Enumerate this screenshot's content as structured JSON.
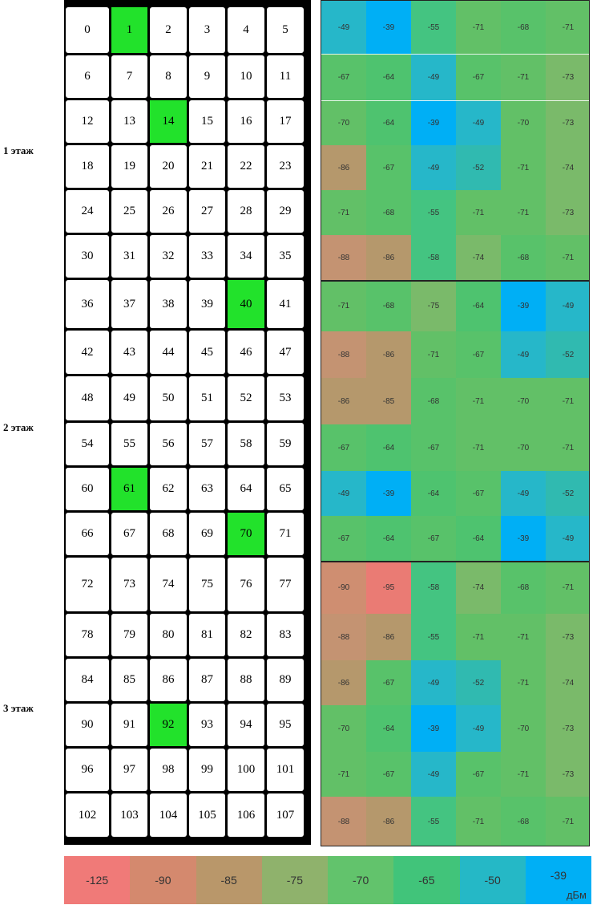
{
  "floors": [
    {
      "label": "1 этаж"
    },
    {
      "label": "2 этаж"
    },
    {
      "label": "3 этаж"
    }
  ],
  "rooms": [
    "0",
    "1",
    "2",
    "3",
    "4",
    "5",
    "6",
    "7",
    "8",
    "9",
    "10",
    "11",
    "12",
    "13",
    "14",
    "15",
    "16",
    "17",
    "18",
    "19",
    "20",
    "21",
    "22",
    "23",
    "24",
    "25",
    "26",
    "27",
    "28",
    "29",
    "30",
    "31",
    "32",
    "33",
    "34",
    "35",
    "36",
    "37",
    "38",
    "39",
    "40",
    "41",
    "42",
    "43",
    "44",
    "45",
    "46",
    "47",
    "48",
    "49",
    "50",
    "51",
    "52",
    "53",
    "54",
    "55",
    "56",
    "57",
    "58",
    "59",
    "60",
    "61",
    "62",
    "63",
    "64",
    "65",
    "66",
    "67",
    "68",
    "69",
    "70",
    "71",
    "72",
    "73",
    "74",
    "75",
    "76",
    "77",
    "78",
    "79",
    "80",
    "81",
    "82",
    "83",
    "84",
    "85",
    "86",
    "87",
    "88",
    "89",
    "90",
    "91",
    "92",
    "93",
    "94",
    "95",
    "96",
    "97",
    "98",
    "99",
    "100",
    "101",
    "102",
    "103",
    "104",
    "105",
    "106",
    "107"
  ],
  "highlighted_rooms": [
    1,
    14,
    40,
    61,
    70,
    92
  ],
  "signal_dbm": [
    [
      -49,
      -39,
      -55,
      -71,
      -68,
      -71
    ],
    [
      -67,
      -64,
      -49,
      -67,
      -71,
      -73
    ],
    [
      -70,
      -64,
      -39,
      -49,
      -70,
      -73
    ],
    [
      -86,
      -67,
      -49,
      -52,
      -71,
      -74
    ],
    [
      -71,
      -68,
      -55,
      -71,
      -71,
      -73
    ],
    [
      -88,
      -86,
      -58,
      -74,
      -68,
      -71
    ],
    [
      -71,
      -68,
      -75,
      -64,
      -39,
      -49
    ],
    [
      -88,
      -86,
      -71,
      -67,
      -49,
      -52
    ],
    [
      -86,
      -85,
      -68,
      -71,
      -70,
      -71
    ],
    [
      -67,
      -64,
      -67,
      -71,
      -70,
      -71
    ],
    [
      -49,
      -39,
      -64,
      -67,
      -49,
      -52
    ],
    [
      -67,
      -64,
      -67,
      -64,
      -39,
      -49
    ],
    [
      -90,
      -95,
      -58,
      -74,
      -68,
      -71
    ],
    [
      -88,
      -86,
      -55,
      -71,
      -71,
      -73
    ],
    [
      -86,
      -67,
      -49,
      -52,
      -71,
      -74
    ],
    [
      -70,
      -64,
      -39,
      -49,
      -70,
      -73
    ],
    [
      -71,
      -67,
      -49,
      -67,
      -71,
      -73
    ],
    [
      -88,
      -86,
      -55,
      -71,
      -68,
      -71
    ]
  ],
  "legend": {
    "stops": [
      {
        "label": "-125",
        "color": "#f07a78"
      },
      {
        "label": "-90",
        "color": "#d4896e"
      },
      {
        "label": "-85",
        "color": "#b9976a"
      },
      {
        "label": "-75",
        "color": "#8fb26c"
      },
      {
        "label": "-70",
        "color": "#62c36c"
      },
      {
        "label": "-65",
        "color": "#41c47a"
      },
      {
        "label": "-50",
        "color": "#25b8c6"
      },
      {
        "label": "-39",
        "color": "#00aff5"
      }
    ],
    "unit": "дБм"
  }
}
